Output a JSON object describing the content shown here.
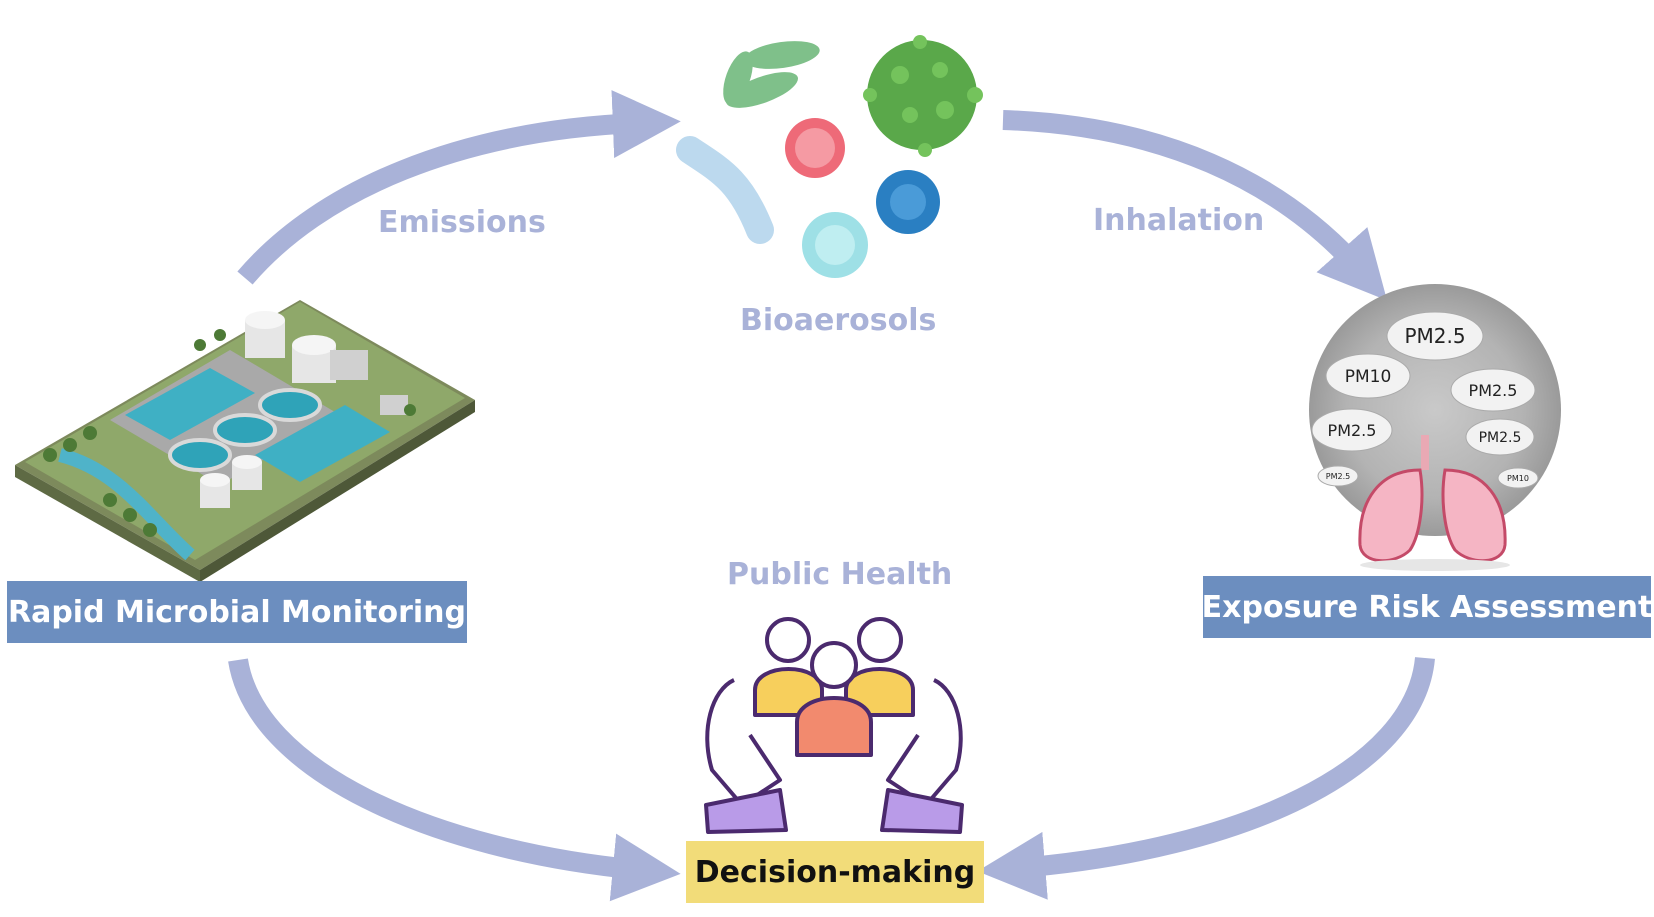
{
  "labels": {
    "emissions": "Emissions",
    "inhalation": "Inhalation",
    "bioaerosols": "Bioaerosols",
    "public_health": "Public Health"
  },
  "boxes": {
    "monitoring": "Rapid Microbial Monitoring",
    "exposure": "Exposure Risk Assessment",
    "decision": "Decision-making"
  },
  "pm_clouds": [
    "PM2.5",
    "PM10",
    "PM2.5",
    "PM2.5",
    "PM2.5",
    "PM2.5",
    "PM10"
  ],
  "colors": {
    "arrow": "#a9b2d8",
    "blue_box": "#6c8ebf",
    "yellow_box": "#f2dc79",
    "label": "#a9b2d8"
  }
}
